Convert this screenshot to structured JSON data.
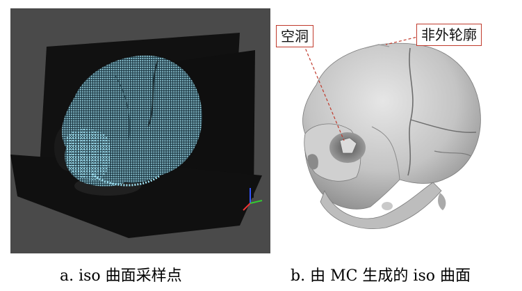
{
  "figure": {
    "panel_a": {
      "caption": "a. iso 曲面采样点"
    },
    "panel_b": {
      "caption": "b. 由 MC 生成的 iso 曲面",
      "callouts": {
        "hole": "空洞",
        "outline": "非外轮廓"
      }
    },
    "colors": {
      "background_a": "#4a4a4a",
      "planes": "#0d0d0d",
      "points": "#9fe3f5",
      "skull": "#c8c8c8",
      "callout_border": "#c0392b"
    }
  }
}
